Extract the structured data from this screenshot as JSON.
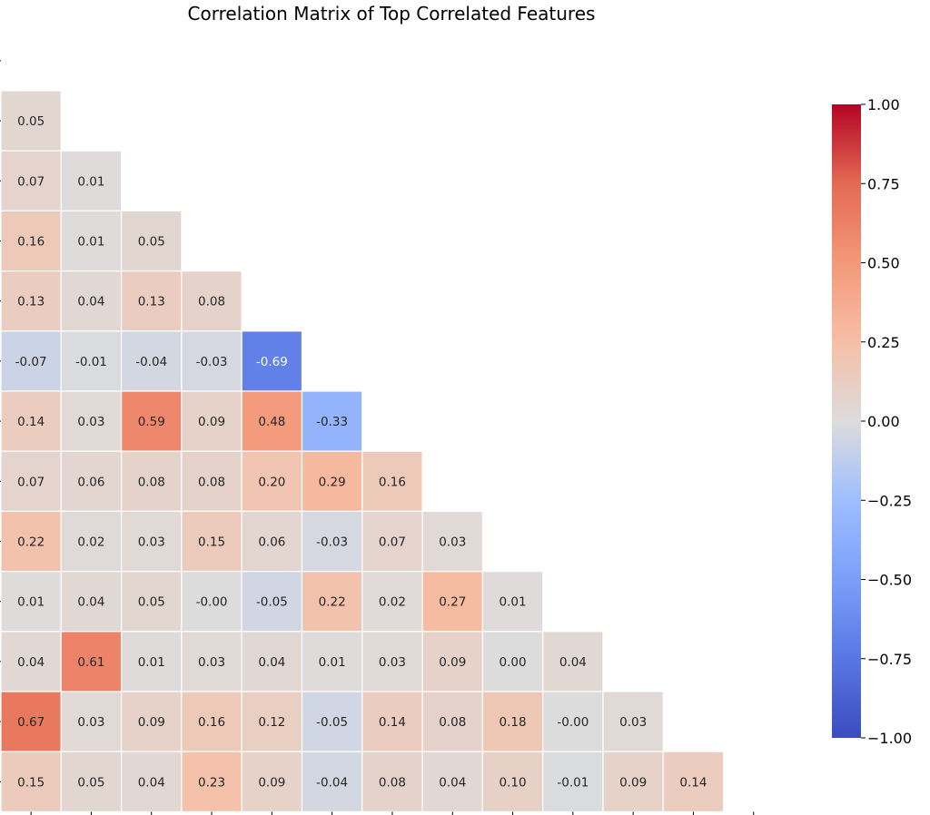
{
  "chart_data": {
    "type": "heatmap",
    "title": "Correlation Matrix of Top Correlated Features",
    "variant": "lower-triangle (upper triangle masked)",
    "colormap": "coolwarm",
    "vmin": -1.0,
    "vmax": 1.0,
    "row_labels": [],
    "column_labels": [],
    "rows": [
      [
        0.05
      ],
      [
        0.07,
        0.01
      ],
      [
        0.16,
        0.01,
        0.05
      ],
      [
        0.13,
        0.04,
        0.13,
        0.08
      ],
      [
        -0.07,
        -0.01,
        -0.04,
        -0.03,
        -0.69
      ],
      [
        0.14,
        0.03,
        0.59,
        0.09,
        0.48,
        -0.33
      ],
      [
        0.07,
        0.06,
        0.08,
        0.08,
        0.2,
        0.29,
        0.16
      ],
      [
        0.22,
        0.02,
        0.03,
        0.15,
        0.06,
        -0.03,
        0.07,
        0.03
      ],
      [
        0.01,
        0.04,
        0.05,
        -0.0,
        -0.05,
        0.22,
        0.02,
        0.27,
        0.01
      ],
      [
        0.04,
        0.61,
        0.01,
        0.03,
        0.04,
        0.01,
        0.03,
        0.09,
        0.0,
        0.04
      ],
      [
        0.67,
        0.03,
        0.09,
        0.16,
        0.12,
        -0.05,
        0.14,
        0.08,
        0.18,
        -0.0,
        0.03
      ],
      [
        0.15,
        0.05,
        0.04,
        0.23,
        0.09,
        -0.04,
        0.08,
        0.04,
        0.1,
        -0.01,
        0.09,
        0.14
      ]
    ],
    "colorbar": {
      "ticks": [
        1.0,
        0.75,
        0.5,
        0.25,
        0.0,
        -0.25,
        -0.5,
        -0.75,
        -1.0
      ],
      "tick_labels": [
        "1.00",
        "0.75",
        "0.50",
        "0.25",
        "0.00",
        "−0.25",
        "−0.50",
        "−0.75",
        "−1.00"
      ]
    }
  }
}
